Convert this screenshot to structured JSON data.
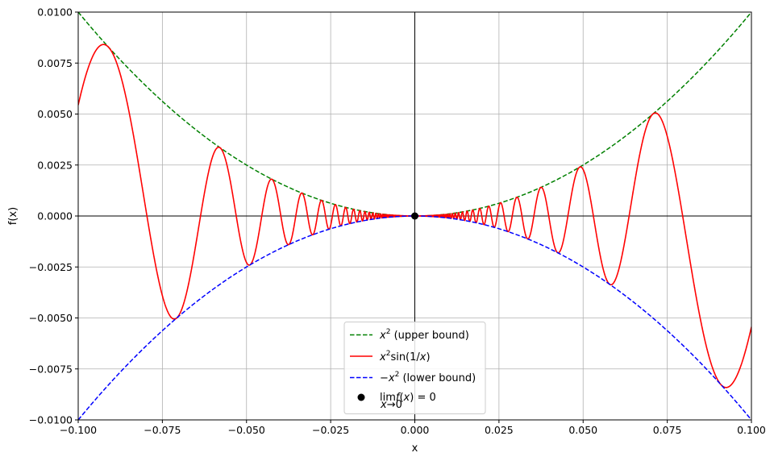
{
  "chart_data": {
    "type": "line",
    "title": "",
    "xlabel": "x",
    "ylabel": "f(x)",
    "xlim": [
      -0.1,
      0.1
    ],
    "ylim": [
      -0.01,
      0.01
    ],
    "grid": true,
    "legend_position": "lower-center",
    "x_ticks": [
      -0.1,
      -0.075,
      -0.05,
      -0.025,
      0.0,
      0.025,
      0.05,
      0.075,
      0.1
    ],
    "x_tick_labels": [
      "−0.100",
      "−0.075",
      "−0.050",
      "−0.025",
      "0.000",
      "0.025",
      "0.050",
      "0.075",
      "0.100"
    ],
    "y_ticks": [
      -0.01,
      -0.0075,
      -0.005,
      -0.0025,
      0.0,
      0.0025,
      0.005,
      0.0075,
      0.01
    ],
    "y_tick_labels": [
      "−0.0100",
      "−0.0075",
      "−0.0050",
      "−0.0025",
      "0.0000",
      "0.0025",
      "0.0050",
      "0.0075",
      "0.0100"
    ],
    "series": [
      {
        "name": "x² (upper bound)",
        "function": "x^2",
        "style": "dashed",
        "color": "#008000",
        "x": [
          -0.1,
          -0.075,
          -0.05,
          -0.025,
          0.0,
          0.025,
          0.05,
          0.075,
          0.1
        ],
        "y": [
          0.01,
          0.005625,
          0.0025,
          0.000625,
          0.0,
          0.000625,
          0.0025,
          0.005625,
          0.01
        ]
      },
      {
        "name": "x²sin(1/x)",
        "function": "x^2*sin(1/x)",
        "style": "solid",
        "color": "#ff0000",
        "x": [
          -0.1,
          -0.0925,
          -0.0717,
          -0.05,
          -0.025,
          0.0,
          0.025,
          0.05,
          0.0717,
          0.0925,
          0.1
        ],
        "y": [
          0.0054,
          0.0084,
          -0.005,
          -0.0023,
          0.00047,
          0.0,
          -0.00047,
          0.0023,
          0.005,
          -0.0084,
          -0.0054
        ]
      },
      {
        "name": "−x² (lower bound)",
        "function": "-x^2",
        "style": "dashed",
        "color": "#0000ff",
        "x": [
          -0.1,
          -0.075,
          -0.05,
          -0.025,
          0.0,
          0.025,
          0.05,
          0.075,
          0.1
        ],
        "y": [
          -0.01,
          -0.005625,
          -0.0025,
          -0.000625,
          0.0,
          -0.000625,
          -0.0025,
          -0.005625,
          -0.01
        ]
      },
      {
        "name": "lim f(x) = 0",
        "style": "marker",
        "color": "#000000",
        "x": [
          0.0
        ],
        "y": [
          0.0
        ]
      }
    ]
  },
  "legend": {
    "upper_main": "x",
    "upper_sup": "2",
    "upper_rest": " (upper bound)",
    "curve_main": "x",
    "curve_sup": "2",
    "curve_sin": "sin(1/",
    "curve_x": "x",
    "curve_close": ")",
    "lower_minus": "−",
    "lower_main": "x",
    "lower_sup": "2",
    "lower_rest": " (lower bound)",
    "limit_lim": "lim",
    "limit_f": "f",
    "limit_paren": "(",
    "limit_x": "x",
    "limit_rest": ") = 0",
    "limit_sub_x": "x",
    "limit_sub_rest": "→0"
  }
}
